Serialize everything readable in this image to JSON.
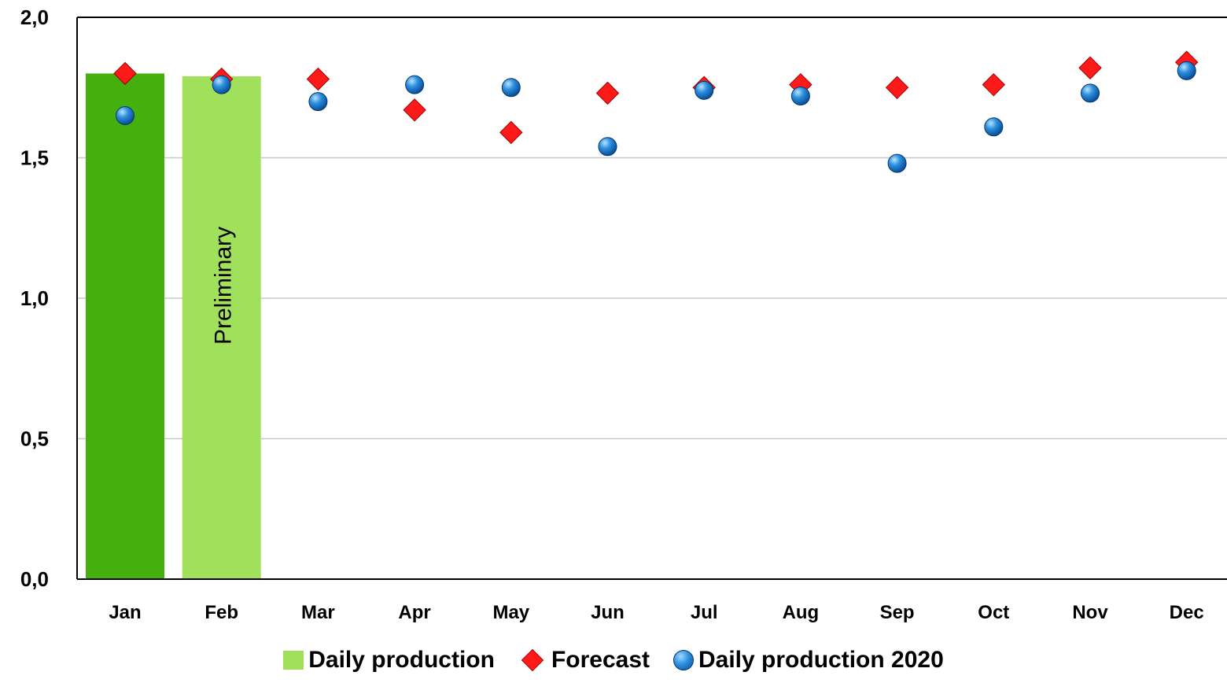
{
  "chart_data": {
    "type": "bar",
    "title": "",
    "xlabel": "",
    "ylabel": "",
    "ylim": [
      0,
      2.0
    ],
    "y_ticks": [
      "0,0",
      "0,5",
      "1,0",
      "1,5",
      "2,0"
    ],
    "grid": true,
    "legend_position": "bottom",
    "categories": [
      "Jan",
      "Feb",
      "Mar",
      "Apr",
      "May",
      "Jun",
      "Jul",
      "Aug",
      "Sep",
      "Oct",
      "Nov",
      "Dec"
    ],
    "annotation": "Preliminary",
    "series": [
      {
        "name": "Daily production",
        "type": "bar",
        "values": [
          1.8,
          1.79,
          null,
          null,
          null,
          null,
          null,
          null,
          null,
          null,
          null,
          null
        ],
        "colors": [
          "#43b00e",
          "#a0e05a"
        ]
      },
      {
        "name": "Forecast",
        "type": "scatter",
        "marker": "diamond",
        "color": "#ff1a1a",
        "values": [
          1.8,
          1.78,
          1.78,
          1.67,
          1.59,
          1.73,
          1.75,
          1.76,
          1.75,
          1.76,
          1.82,
          1.84
        ]
      },
      {
        "name": "Daily production 2020",
        "type": "scatter",
        "marker": "circle",
        "color": "#2c8fdd",
        "values": [
          1.65,
          1.76,
          1.7,
          1.76,
          1.75,
          1.54,
          1.74,
          1.72,
          1.48,
          1.61,
          1.73,
          1.81
        ]
      }
    ]
  }
}
